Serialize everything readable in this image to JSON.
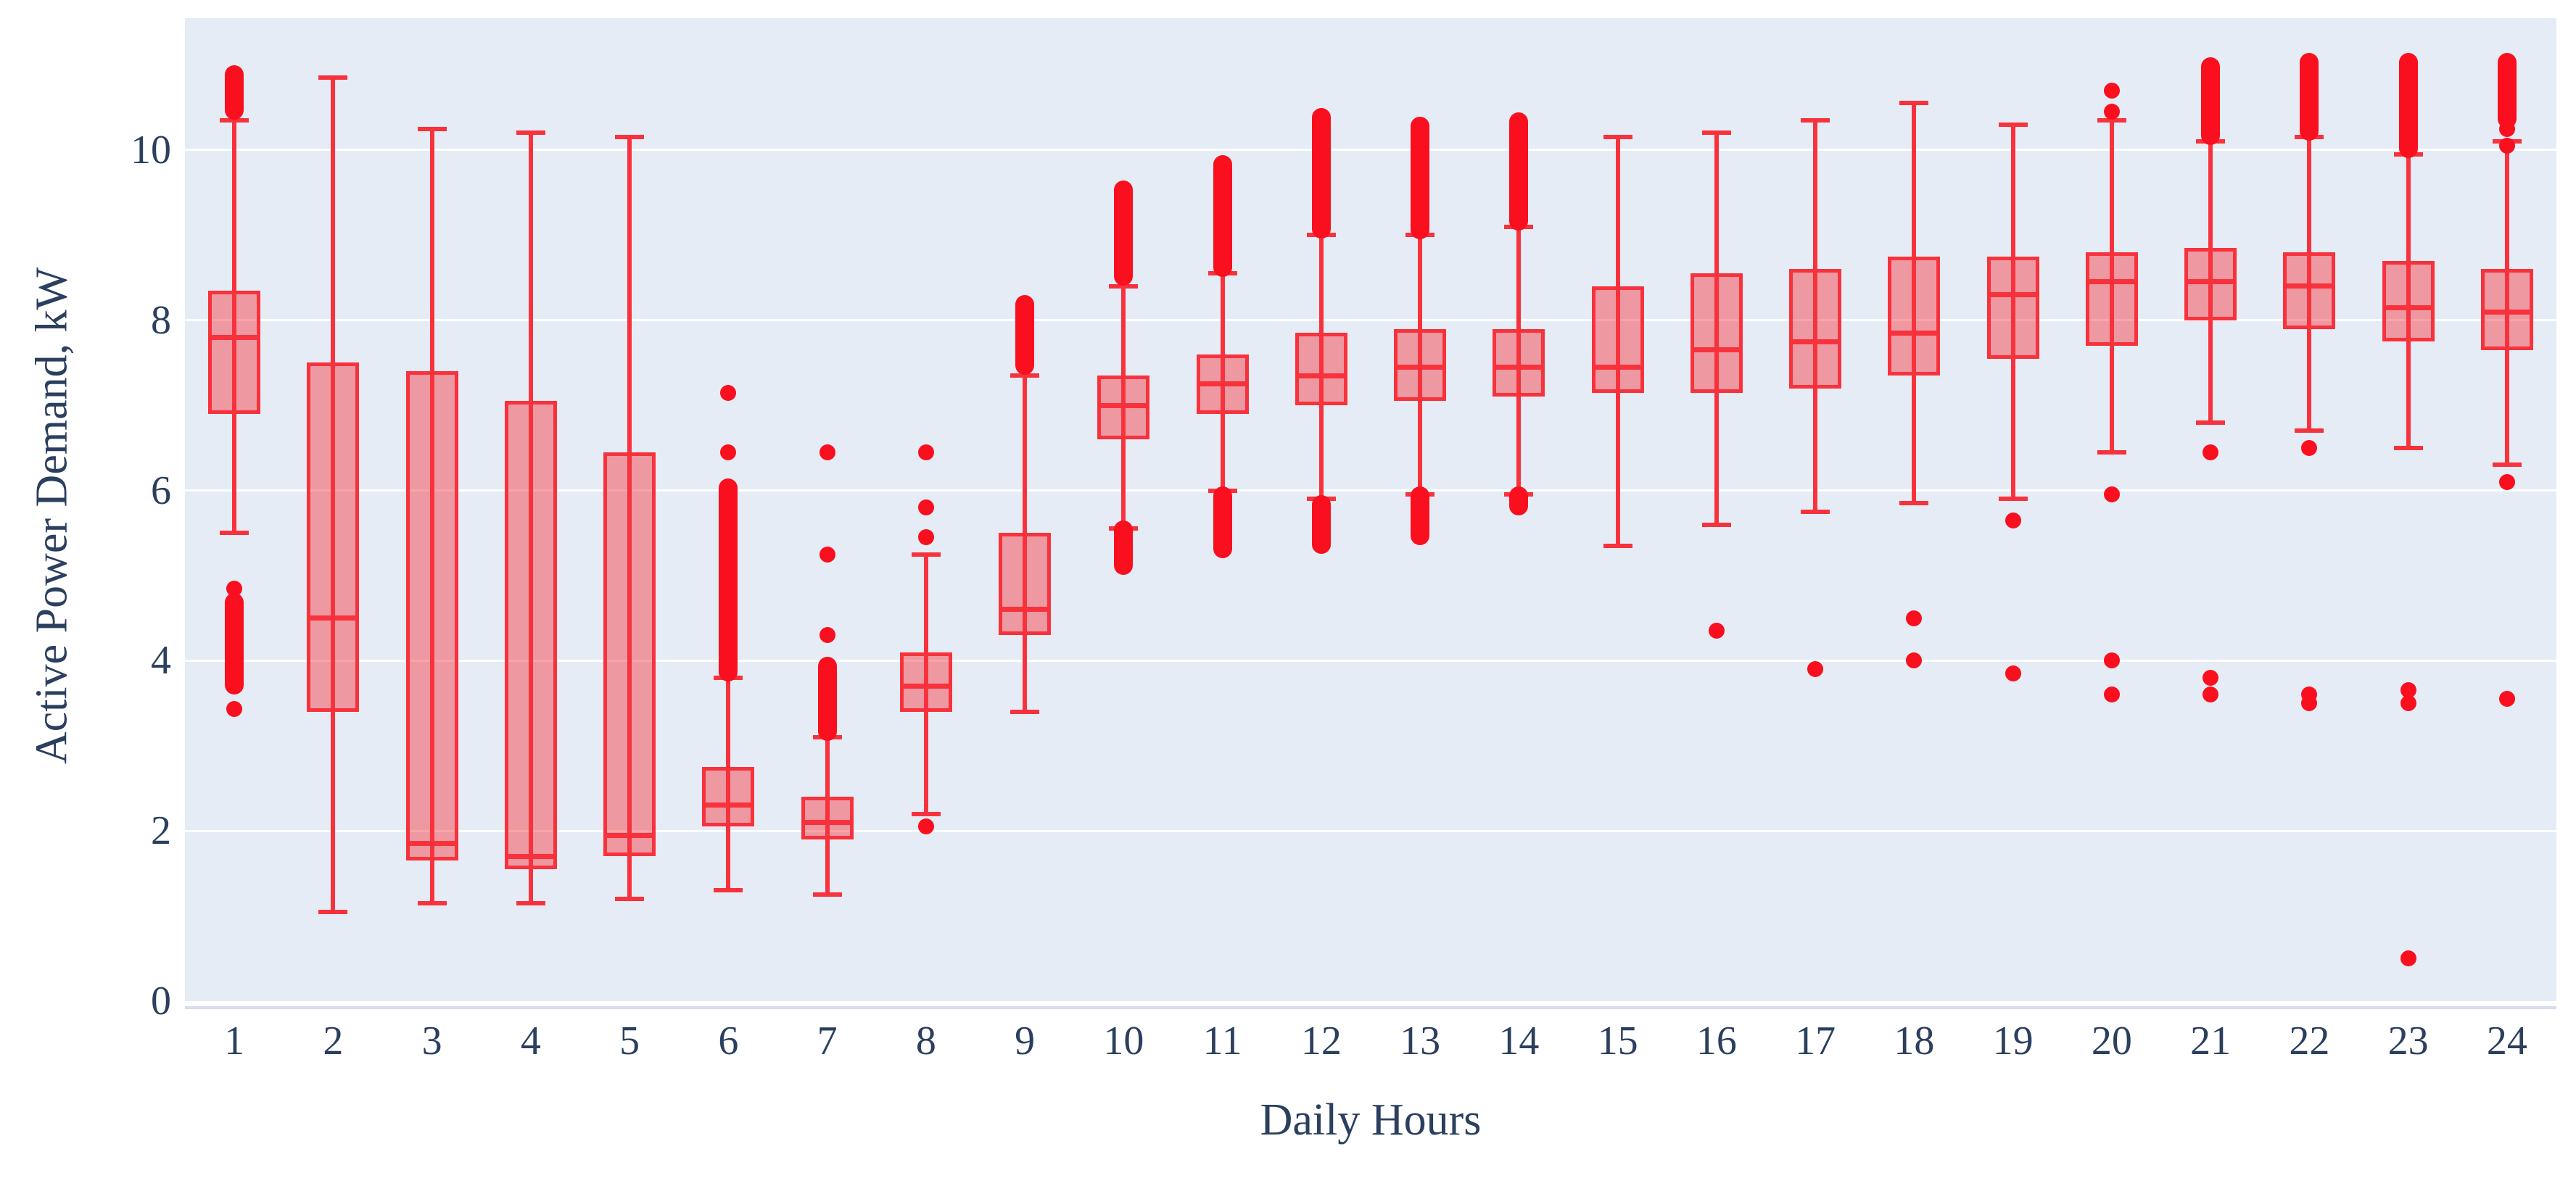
{
  "figure": {
    "background": "#ffffff"
  },
  "axes": {
    "x_title": "Daily Hours",
    "y_title": "Active Power Demand, kW"
  },
  "chart_data": {
    "type": "box",
    "title": "",
    "xlabel": "Daily Hours",
    "ylabel": "Active Power Demand, kW",
    "categories": [
      "1",
      "2",
      "3",
      "4",
      "5",
      "6",
      "7",
      "8",
      "9",
      "10",
      "11",
      "12",
      "13",
      "14",
      "15",
      "16",
      "17",
      "18",
      "19",
      "20",
      "21",
      "22",
      "23",
      "24"
    ],
    "y_ticks": [
      0,
      2,
      4,
      6,
      8,
      10
    ],
    "ylim": [
      0,
      11.55
    ],
    "grid": true,
    "legend": "none",
    "colors": {
      "line": "#f8323c",
      "fill": "rgba(248,50,60,0.45)",
      "dot": "#fa0f1e",
      "plot_bg": "#e6ecf5",
      "grid": "#ffffff",
      "axis_line": "#d6ddec",
      "text": "#2b3f5e"
    },
    "boxes": [
      {
        "hour": 1,
        "low": 5.5,
        "q1": 6.9,
        "median": 7.8,
        "q3": 8.35,
        "high": 10.35,
        "outliers": [
          4.85,
          3.43
        ],
        "bands": [
          [
            10.45,
            10.9
          ],
          [
            3.7,
            4.7
          ]
        ]
      },
      {
        "hour": 2,
        "low": 1.05,
        "q1": 3.4,
        "median": 4.5,
        "q3": 7.5,
        "high": 10.85,
        "outliers": [],
        "bands": []
      },
      {
        "hour": 3,
        "low": 1.15,
        "q1": 1.65,
        "median": 1.85,
        "q3": 7.4,
        "high": 10.25,
        "outliers": [],
        "bands": []
      },
      {
        "hour": 4,
        "low": 1.15,
        "q1": 1.55,
        "median": 1.7,
        "q3": 7.05,
        "high": 10.2,
        "outliers": [],
        "bands": []
      },
      {
        "hour": 5,
        "low": 1.2,
        "q1": 1.7,
        "median": 1.95,
        "q3": 6.45,
        "high": 10.15,
        "outliers": [],
        "bands": []
      },
      {
        "hour": 6,
        "low": 1.3,
        "q1": 2.05,
        "median": 2.3,
        "q3": 2.75,
        "high": 3.8,
        "outliers": [
          6.45,
          7.15
        ],
        "bands": [
          [
            3.85,
            6.05
          ]
        ]
      },
      {
        "hour": 7,
        "low": 1.25,
        "q1": 1.9,
        "median": 2.1,
        "q3": 2.4,
        "high": 3.1,
        "outliers": [
          4.3,
          5.25,
          6.45
        ],
        "bands": [
          [
            3.15,
            3.95
          ]
        ]
      },
      {
        "hour": 8,
        "low": 2.2,
        "q1": 3.4,
        "median": 3.7,
        "q3": 4.1,
        "high": 5.25,
        "outliers": [
          2.05,
          5.45,
          5.8,
          6.45
        ],
        "bands": []
      },
      {
        "hour": 9,
        "low": 3.4,
        "q1": 4.3,
        "median": 4.6,
        "q3": 5.5,
        "high": 7.35,
        "outliers": [],
        "bands": [
          [
            7.45,
            8.2
          ]
        ]
      },
      {
        "hour": 10,
        "low": 5.55,
        "q1": 6.6,
        "median": 7.0,
        "q3": 7.35,
        "high": 8.4,
        "outliers": [],
        "bands": [
          [
            8.5,
            9.55
          ],
          [
            5.1,
            5.55
          ]
        ]
      },
      {
        "hour": 11,
        "low": 6.0,
        "q1": 6.9,
        "median": 7.25,
        "q3": 7.6,
        "high": 8.55,
        "outliers": [],
        "bands": [
          [
            8.6,
            9.85
          ],
          [
            5.3,
            5.95
          ]
        ]
      },
      {
        "hour": 12,
        "low": 5.9,
        "q1": 7.0,
        "median": 7.35,
        "q3": 7.85,
        "high": 9.0,
        "outliers": [],
        "bands": [
          [
            9.05,
            10.4
          ],
          [
            5.35,
            5.85
          ]
        ]
      },
      {
        "hour": 13,
        "low": 5.95,
        "q1": 7.05,
        "median": 7.45,
        "q3": 7.9,
        "high": 9.0,
        "outliers": [],
        "bands": [
          [
            9.05,
            10.3
          ],
          [
            5.45,
            5.95
          ]
        ]
      },
      {
        "hour": 14,
        "low": 5.95,
        "q1": 7.1,
        "median": 7.45,
        "q3": 7.9,
        "high": 9.1,
        "outliers": [],
        "bands": [
          [
            9.15,
            10.35
          ],
          [
            5.8,
            5.95
          ]
        ]
      },
      {
        "hour": 15,
        "low": 5.35,
        "q1": 7.15,
        "median": 7.45,
        "q3": 8.4,
        "high": 10.15,
        "outliers": [],
        "bands": []
      },
      {
        "hour": 16,
        "low": 5.6,
        "q1": 7.15,
        "median": 7.65,
        "q3": 8.55,
        "high": 10.2,
        "outliers": [
          4.35
        ],
        "bands": []
      },
      {
        "hour": 17,
        "low": 5.75,
        "q1": 7.2,
        "median": 7.75,
        "q3": 8.6,
        "high": 10.35,
        "outliers": [
          3.9
        ],
        "bands": []
      },
      {
        "hour": 18,
        "low": 5.85,
        "q1": 7.35,
        "median": 7.85,
        "q3": 8.75,
        "high": 10.55,
        "outliers": [
          4.5,
          4.0
        ],
        "bands": []
      },
      {
        "hour": 19,
        "low": 5.9,
        "q1": 7.55,
        "median": 8.3,
        "q3": 8.75,
        "high": 10.3,
        "outliers": [
          5.65,
          3.85
        ],
        "bands": []
      },
      {
        "hour": 20,
        "low": 6.45,
        "q1": 7.7,
        "median": 8.45,
        "q3": 8.8,
        "high": 10.35,
        "outliers": [
          10.7,
          10.45,
          5.95,
          4.0,
          3.6
        ],
        "bands": []
      },
      {
        "hour": 21,
        "low": 6.8,
        "q1": 8.0,
        "median": 8.45,
        "q3": 8.85,
        "high": 10.1,
        "outliers": [
          6.45,
          3.8,
          3.6
        ],
        "bands": [
          [
            10.15,
            11.0
          ]
        ]
      },
      {
        "hour": 22,
        "low": 6.7,
        "q1": 7.9,
        "median": 8.4,
        "q3": 8.8,
        "high": 10.15,
        "outliers": [
          6.5,
          3.6,
          3.5
        ],
        "bands": [
          [
            10.2,
            11.05
          ]
        ]
      },
      {
        "hour": 23,
        "low": 6.5,
        "q1": 7.75,
        "median": 8.15,
        "q3": 8.7,
        "high": 9.95,
        "outliers": [
          3.65,
          3.5,
          0.5
        ],
        "bands": [
          [
            10.0,
            11.05
          ]
        ]
      },
      {
        "hour": 24,
        "low": 6.3,
        "q1": 7.65,
        "median": 8.1,
        "q3": 8.6,
        "high": 10.1,
        "outliers": [
          10.25,
          10.05,
          6.1,
          3.55
        ],
        "bands": [
          [
            10.35,
            11.05
          ]
        ]
      }
    ]
  }
}
